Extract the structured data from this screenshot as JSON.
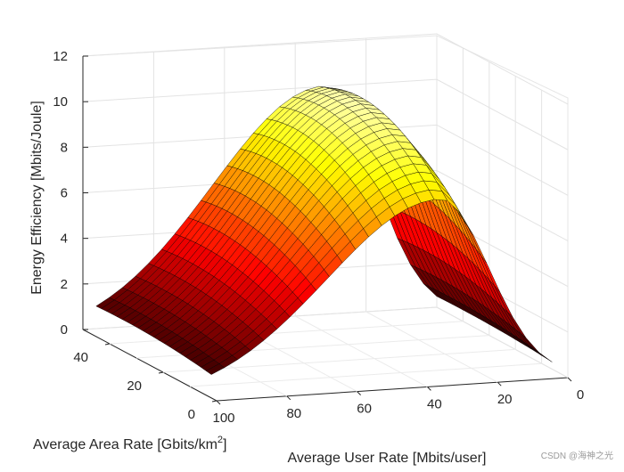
{
  "chart_data": {
    "type": "surface3d",
    "title": "",
    "zlabel": "Energy Efficiency [Mbits/Joule]",
    "xlabel": "Average User Rate [Mbits/user]",
    "ylabel": "Average Area Rate [Gbits/km",
    "ylabel_sup": "2",
    "ylabel_close": "]",
    "zlim": [
      0,
      12
    ],
    "z_ticks": [
      "0",
      "2",
      "4",
      "6",
      "8",
      "10",
      "12"
    ],
    "x_ticks": [
      "0",
      "20",
      "40",
      "60",
      "80",
      "100"
    ],
    "y_ticks": [
      "0",
      "20",
      "40"
    ],
    "colormap": "hot",
    "grid": true,
    "peak": {
      "user_rate": 35,
      "area_rate": 35,
      "efficiency": 10.6
    },
    "surface_outline_height": [
      {
        "user_rate": 100,
        "efficiency": 0.6
      },
      {
        "user_rate": 60,
        "efficiency": 4.5
      },
      {
        "user_rate": 40,
        "efficiency": 9.5
      },
      {
        "user_rate": 25,
        "efficiency": 10.6
      },
      {
        "user_rate": 10,
        "efficiency": 6.0
      },
      {
        "user_rate": 2,
        "efficiency": 0.0
      }
    ]
  },
  "watermark": "CSDN @海神之光"
}
